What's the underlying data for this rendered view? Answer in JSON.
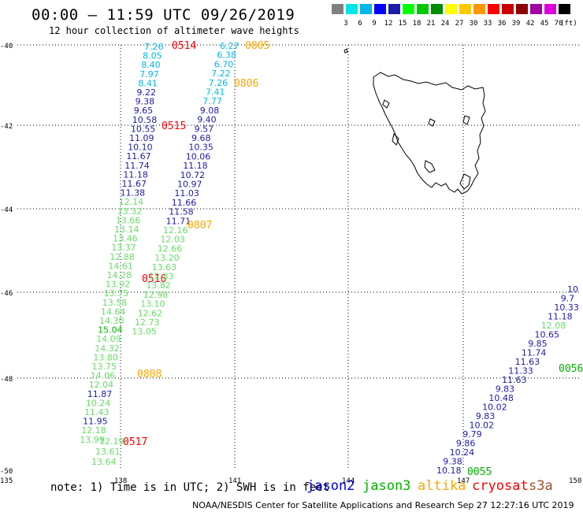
{
  "header": {
    "title": "00:00 – 11:59 UTC 09/26/2019",
    "subtitle": "12 hour collection of altimeter wave heights"
  },
  "legend": {
    "unit_label": "(ft)",
    "bins": [
      {
        "color": "#808080",
        "label": ""
      },
      {
        "color": "#00e5e5",
        "label": "3"
      },
      {
        "color": "#00b8e8",
        "label": "6"
      },
      {
        "color": "#0000ff",
        "label": "9"
      },
      {
        "color": "#1c1caa",
        "label": "12"
      },
      {
        "color": "#00ff00",
        "label": "15"
      },
      {
        "color": "#00c800",
        "label": "18"
      },
      {
        "color": "#008c00",
        "label": "21"
      },
      {
        "color": "#ffff00",
        "label": "24"
      },
      {
        "color": "#ffc800",
        "label": "27"
      },
      {
        "color": "#ff9600",
        "label": "30"
      },
      {
        "color": "#ff0000",
        "label": "33"
      },
      {
        "color": "#c80000",
        "label": "36"
      },
      {
        "color": "#8c0000",
        "label": "39"
      },
      {
        "color": "#a000a0",
        "label": "42"
      },
      {
        "color": "#dc00dc",
        "label": "45"
      },
      {
        "color": "#000000",
        "label": "70"
      }
    ]
  },
  "axes": {
    "lat_labels": [
      "-40",
      "-42",
      "-44",
      "-46",
      "-48",
      "-50"
    ],
    "lon_labels": [
      "135",
      "138",
      "141",
      "144",
      "147",
      "150"
    ]
  },
  "satellite_colors": {
    "jason2": "#0000cd",
    "jason3": "#00b400",
    "altika": "#ffa500",
    "cryosat": "#ff0000",
    "s3a": "#a0522d",
    "jason3_light": "#66dd66",
    "cyan": "#00b8e8",
    "navy": "#1c1caa"
  },
  "tracks": {
    "track_a_west": {
      "values": [
        "7.26",
        "8.05",
        "8.40",
        "7.97",
        "8.41",
        "9.22",
        "9.38",
        "9.65",
        "10.58",
        "10.55",
        "11.09",
        "10.10",
        "11.67",
        "11.74",
        "11.18",
        "11.67",
        "11.38",
        "12.14",
        "13.32",
        "13.66",
        "13.14",
        "13.46",
        "13.37",
        "12.88",
        "14.61",
        "14.28",
        "13.92",
        "13.75",
        "13.58",
        "14.64",
        "14.30",
        "15.04",
        "14.09",
        "14.32",
        "13.80",
        "13.75",
        "14.06",
        "12.04",
        "11.87",
        "10.24",
        "11.43",
        "11.95",
        "12.18",
        "13.99"
      ],
      "end_values": [
        "13.64",
        "13.61",
        "12.19"
      ],
      "time_labels": [
        "0514",
        "0515",
        "0516",
        "0517"
      ]
    },
    "track_b_east": {
      "values": [
        "6.27",
        "6.38",
        "6.70",
        "7.22",
        "7.26",
        "7.41",
        "7.77",
        "9.08",
        "9.40",
        "9.57",
        "9.68",
        "10.35",
        "10.06",
        "11.18",
        "10.72",
        "10.97",
        "11.03",
        "11.66",
        "11.58",
        "11.71",
        "12.16",
        "12.03",
        "12.66",
        "13.20",
        "13.63",
        "12.83",
        "13.82",
        "12.98",
        "13.10",
        "12.62",
        "12.73",
        "13.05"
      ],
      "time_labels": [
        "0805",
        "0806",
        "0807",
        "0808"
      ]
    },
    "track_c_southeast": {
      "values": [
        "10.18",
        "9.38",
        "10.24",
        "9.86",
        "9.79",
        "10.02",
        "9.83",
        "10.02",
        "10.48",
        "9.83",
        "11.63",
        "11.33",
        "11.63",
        "11.74",
        "9.85",
        "10.65",
        "12.08",
        "11.18",
        "10.33",
        "9.7",
        "10"
      ],
      "time_labels": [
        "0055",
        "0056"
      ]
    }
  },
  "note": "note:  1) Time is in UTC;  2) SWH is in feet",
  "satellites": [
    {
      "name": "jason2",
      "color": "#0000cd"
    },
    {
      "name": "jason3",
      "color": "#00b400"
    },
    {
      "name": "altika",
      "color": "#ffa500"
    },
    {
      "name": "cryosat",
      "color": "#ff0000"
    },
    {
      "name": "s3a",
      "color": "#a0522d"
    }
  ],
  "credit": "NOAA/NESDIS Center for Satellite Applications and Research    Sep 27 12:27:16 UTC 2019"
}
